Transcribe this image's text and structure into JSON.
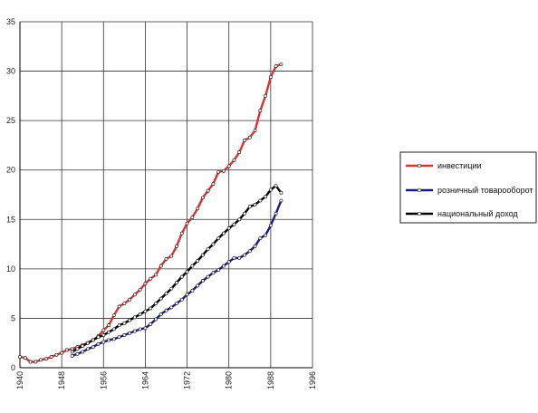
{
  "chart_data": {
    "type": "line",
    "x_ticks": [
      1940,
      1948,
      1956,
      1964,
      1972,
      1980,
      1988,
      1996
    ],
    "y_ticks": [
      0,
      5,
      10,
      15,
      20,
      25,
      30,
      35
    ],
    "xlim": [
      1940,
      1996
    ],
    "ylim": [
      0,
      35
    ],
    "grid": true,
    "legend_position": "right",
    "series": [
      {
        "name": "инвестиции",
        "color": "#e03030",
        "points": [
          [
            1940,
            1.1
          ],
          [
            1941,
            1.0
          ],
          [
            1942,
            0.6
          ],
          [
            1943,
            0.6
          ],
          [
            1944,
            0.8
          ],
          [
            1945,
            0.9
          ],
          [
            1946,
            1.1
          ],
          [
            1947,
            1.3
          ],
          [
            1948,
            1.5
          ],
          [
            1949,
            1.8
          ],
          [
            1950,
            1.9
          ],
          [
            1951,
            2.1
          ],
          [
            1952,
            2.3
          ],
          [
            1953,
            2.5
          ],
          [
            1954,
            2.8
          ],
          [
            1955,
            3.2
          ],
          [
            1956,
            3.8
          ],
          [
            1957,
            4.3
          ],
          [
            1958,
            5.3
          ],
          [
            1959,
            6.2
          ],
          [
            1960,
            6.5
          ],
          [
            1961,
            6.9
          ],
          [
            1962,
            7.4
          ],
          [
            1963,
            7.9
          ],
          [
            1964,
            8.5
          ],
          [
            1965,
            9.0
          ],
          [
            1966,
            9.4
          ],
          [
            1967,
            10.3
          ],
          [
            1968,
            11.0
          ],
          [
            1969,
            11.3
          ],
          [
            1970,
            12.3
          ],
          [
            1971,
            13.6
          ],
          [
            1972,
            14.6
          ],
          [
            1973,
            15.2
          ],
          [
            1974,
            16.1
          ],
          [
            1975,
            17.2
          ],
          [
            1976,
            17.9
          ],
          [
            1977,
            18.6
          ],
          [
            1978,
            19.8
          ],
          [
            1979,
            19.9
          ],
          [
            1980,
            20.4
          ],
          [
            1981,
            21.0
          ],
          [
            1982,
            21.8
          ],
          [
            1983,
            23.0
          ],
          [
            1984,
            23.3
          ],
          [
            1985,
            24.0
          ],
          [
            1986,
            26.0
          ],
          [
            1987,
            27.5
          ],
          [
            1988,
            29.4
          ],
          [
            1989,
            30.5
          ],
          [
            1990,
            30.7
          ]
        ]
      },
      {
        "name": "розничный товарооборот",
        "color": "#1a1a80",
        "points": [
          [
            1950,
            1.2
          ],
          [
            1951,
            1.4
          ],
          [
            1952,
            1.6
          ],
          [
            1953,
            1.9
          ],
          [
            1954,
            2.1
          ],
          [
            1955,
            2.4
          ],
          [
            1956,
            2.6
          ],
          [
            1957,
            2.8
          ],
          [
            1958,
            2.9
          ],
          [
            1959,
            3.1
          ],
          [
            1960,
            3.3
          ],
          [
            1961,
            3.5
          ],
          [
            1962,
            3.7
          ],
          [
            1963,
            3.9
          ],
          [
            1964,
            4.0
          ],
          [
            1965,
            4.4
          ],
          [
            1966,
            4.9
          ],
          [
            1967,
            5.4
          ],
          [
            1968,
            5.8
          ],
          [
            1969,
            6.1
          ],
          [
            1970,
            6.5
          ],
          [
            1971,
            6.9
          ],
          [
            1972,
            7.4
          ],
          [
            1973,
            7.8
          ],
          [
            1974,
            8.3
          ],
          [
            1975,
            8.8
          ],
          [
            1976,
            9.2
          ],
          [
            1977,
            9.6
          ],
          [
            1978,
            9.9
          ],
          [
            1979,
            10.3
          ],
          [
            1980,
            10.7
          ],
          [
            1981,
            11.1
          ],
          [
            1982,
            11.1
          ],
          [
            1983,
            11.4
          ],
          [
            1984,
            11.8
          ],
          [
            1985,
            12.3
          ],
          [
            1986,
            13.1
          ],
          [
            1987,
            13.4
          ],
          [
            1988,
            14.4
          ],
          [
            1989,
            15.6
          ],
          [
            1990,
            16.9
          ]
        ]
      },
      {
        "name": "национальный доход",
        "color": "#000000",
        "points": [
          [
            1950,
            1.6
          ],
          [
            1951,
            1.9
          ],
          [
            1952,
            2.2
          ],
          [
            1953,
            2.5
          ],
          [
            1954,
            2.8
          ],
          [
            1955,
            3.1
          ],
          [
            1956,
            3.3
          ],
          [
            1957,
            3.6
          ],
          [
            1958,
            3.9
          ],
          [
            1959,
            4.3
          ],
          [
            1960,
            4.5
          ],
          [
            1961,
            4.8
          ],
          [
            1962,
            5.1
          ],
          [
            1963,
            5.4
          ],
          [
            1964,
            5.7
          ],
          [
            1965,
            6.0
          ],
          [
            1966,
            6.5
          ],
          [
            1967,
            7.0
          ],
          [
            1968,
            7.5
          ],
          [
            1969,
            8.0
          ],
          [
            1970,
            8.6
          ],
          [
            1971,
            9.2
          ],
          [
            1972,
            9.7
          ],
          [
            1973,
            10.3
          ],
          [
            1974,
            10.8
          ],
          [
            1975,
            11.4
          ],
          [
            1976,
            12.0
          ],
          [
            1977,
            12.5
          ],
          [
            1978,
            13.1
          ],
          [
            1979,
            13.6
          ],
          [
            1980,
            14.1
          ],
          [
            1981,
            14.5
          ],
          [
            1982,
            15.0
          ],
          [
            1983,
            15.6
          ],
          [
            1984,
            16.3
          ],
          [
            1985,
            16.5
          ],
          [
            1986,
            16.9
          ],
          [
            1987,
            17.3
          ],
          [
            1988,
            18.0
          ],
          [
            1989,
            18.4
          ],
          [
            1990,
            17.7
          ]
        ]
      }
    ]
  }
}
